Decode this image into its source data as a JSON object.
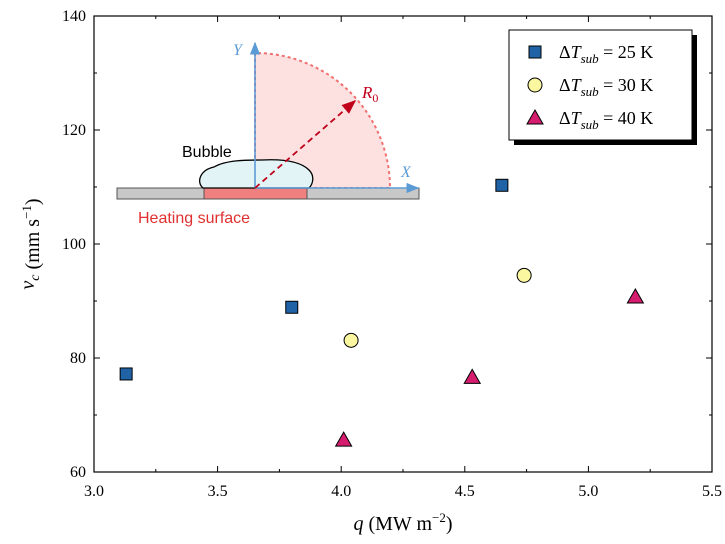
{
  "chart_data": {
    "type": "scatter",
    "xlabel": "q (MW m⁻²)",
    "ylabel": "v_c (mm s⁻¹)",
    "xlim": [
      3.0,
      5.5
    ],
    "ylim": [
      60,
      140
    ],
    "x_ticks": [
      "3.0",
      "3.5",
      "4.0",
      "4.5",
      "5.0",
      "5.5"
    ],
    "y_ticks": [
      "60",
      "80",
      "100",
      "120",
      "140"
    ],
    "legend_position": "top-right",
    "grid": false,
    "series": [
      {
        "name": "ΔT_sub = 25 K",
        "marker": "square",
        "color": "#1f63a6",
        "x": [
          3.13,
          3.8,
          4.65
        ],
        "y": [
          77.2,
          88.9,
          110.3
        ]
      },
      {
        "name": "ΔT_sub = 30 K",
        "marker": "circle",
        "color": "#fbf7a0",
        "x": [
          4.04,
          4.74
        ],
        "y": [
          83.1,
          94.5
        ]
      },
      {
        "name": "ΔT_sub = 40 K",
        "marker": "triangle",
        "color": "#d61c6e",
        "x": [
          4.01,
          4.53,
          5.19
        ],
        "y": [
          65.6,
          76.6,
          90.7
        ]
      }
    ],
    "legend": {
      "entries": [
        {
          "prefix": "ΔT",
          "sub": "sub",
          "suffix": " = 25 K"
        },
        {
          "prefix": "ΔT",
          "sub": "sub",
          "suffix": " = 30 K"
        },
        {
          "prefix": "ΔT",
          "sub": "sub",
          "suffix": " = 40 K"
        }
      ]
    },
    "inset": {
      "bubble_label": "Bubble",
      "surface_label": "Heating surface",
      "y_axis_label": "Y",
      "x_axis_label": "X",
      "radius_label": "R",
      "radius_sub": "0",
      "colors": {
        "sector_fill": "#fde0e0",
        "sector_edge": "#f07070",
        "axis": "#5b9bd5",
        "radius_arrow": "#c0001a",
        "bubble_fill": "#e3f4f6",
        "surface_red": "#f08080",
        "substrate": "#c8c8c8"
      }
    }
  }
}
